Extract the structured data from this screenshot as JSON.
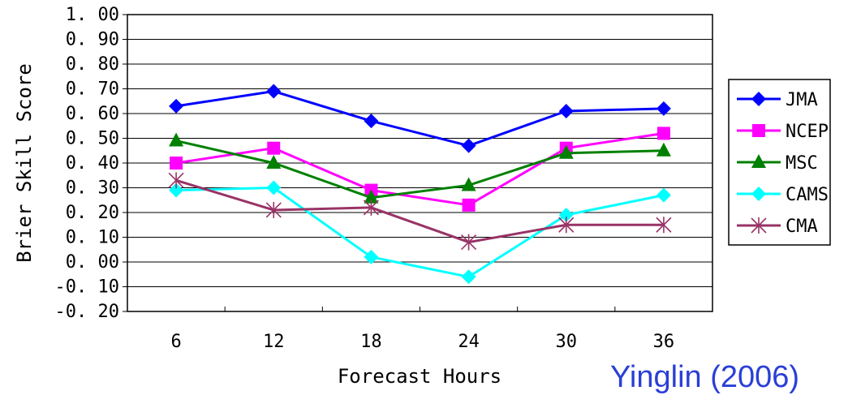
{
  "chart_data": {
    "type": "line",
    "xlabel": "Forecast Hours",
    "ylabel": "Brier Skill Score",
    "categories": [
      "6",
      "12",
      "18",
      "24",
      "30",
      "36"
    ],
    "ylim": [
      -0.2,
      1.0
    ],
    "yticks": [
      "-0.20",
      "-0.10",
      "0.00",
      "0.10",
      "0.20",
      "0.30",
      "0.40",
      "0.50",
      "0.60",
      "0.70",
      "0.80",
      "0.90",
      "1.00"
    ],
    "grid": "horizontal",
    "legend_position": "right",
    "series": [
      {
        "name": "JMA",
        "color": "#0000ff",
        "marker": "diamond",
        "values": [
          0.63,
          0.69,
          0.57,
          0.47,
          0.61,
          0.62
        ]
      },
      {
        "name": "NCEP",
        "color": "#ff00ff",
        "marker": "square",
        "values": [
          0.4,
          0.46,
          0.29,
          0.23,
          0.46,
          0.52
        ]
      },
      {
        "name": "MSC",
        "color": "#008000",
        "marker": "triangle",
        "values": [
          0.49,
          0.4,
          0.26,
          0.31,
          0.44,
          0.45
        ]
      },
      {
        "name": "CAMS",
        "color": "#00ffff",
        "marker": "diamond",
        "values": [
          0.29,
          0.3,
          0.02,
          -0.06,
          0.19,
          0.27
        ]
      },
      {
        "name": "CMA",
        "color": "#993366",
        "marker": "asterisk",
        "values": [
          0.33,
          0.21,
          0.22,
          0.08,
          0.15,
          0.15
        ]
      }
    ]
  },
  "credit": "Yinglin (2006)"
}
